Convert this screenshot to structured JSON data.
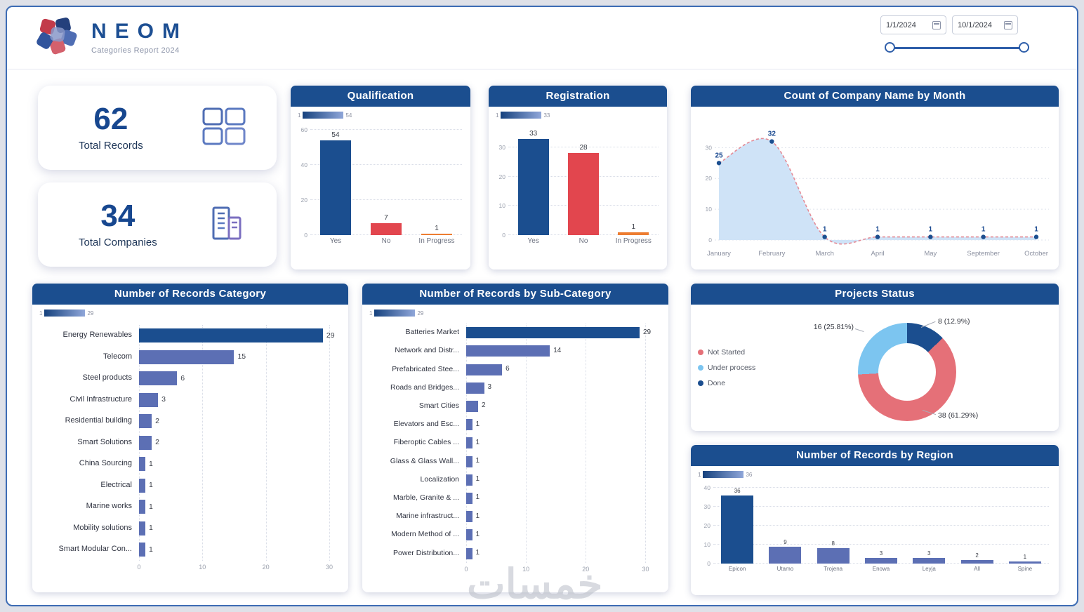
{
  "page": {
    "watermark": "خمسات"
  },
  "header": {
    "title": "NEOM",
    "subtitle": "Categories Report 2024",
    "date_from": "1/1/2024",
    "date_to": "10/1/2024"
  },
  "kpis": [
    {
      "value": "62",
      "label": "Total Records"
    },
    {
      "value": "34",
      "label": "Total Companies"
    }
  ],
  "colors": {
    "navy": "#1b4e8f",
    "slate": "#5c6fb4",
    "red": "#e2464e",
    "rose": "#e57078",
    "orange": "#ed7d31",
    "light_blue": "#7cc5f0"
  },
  "chart_data": [
    {
      "id": "qualification",
      "type": "bar",
      "title": "Qualification",
      "categories": [
        "Yes",
        "No",
        "In Progress"
      ],
      "values": [
        54,
        7,
        1
      ],
      "bar_colors": [
        "navy",
        "red",
        "orange"
      ],
      "yticks": [
        0,
        20,
        40,
        60
      ],
      "ylim": [
        0,
        60
      ],
      "legend_min": "1",
      "legend_max": "54",
      "xlabel": "",
      "ylabel": ""
    },
    {
      "id": "registration",
      "type": "bar",
      "title": "Registration",
      "categories": [
        "Yes",
        "No",
        "In Progress"
      ],
      "values": [
        33,
        28,
        1
      ],
      "bar_colors": [
        "navy",
        "red",
        "orange"
      ],
      "yticks": [
        0,
        10,
        20,
        30
      ],
      "ylim": [
        0,
        36
      ],
      "legend_min": "1",
      "legend_max": "33",
      "xlabel": "",
      "ylabel": ""
    },
    {
      "id": "company-by-month",
      "type": "area",
      "title": "Count of Company Name by Month",
      "categories": [
        "January",
        "February",
        "March",
        "April",
        "May",
        "September",
        "October"
      ],
      "values": [
        25,
        32,
        1,
        1,
        1,
        1,
        1
      ],
      "yticks": [
        0,
        10,
        20,
        30
      ],
      "ylim": [
        0,
        36
      ],
      "xlabel": "",
      "ylabel": ""
    },
    {
      "id": "records-category",
      "type": "bar",
      "title": "Number of Records Category",
      "categories": [
        "Energy Renewables",
        "Telecom",
        "Steel products",
        "Civil Infrastructure",
        "Residential building",
        "Smart Solutions",
        "China Sourcing",
        "Electrical",
        "Marine works",
        "Mobility solutions",
        "Smart Modular Con..."
      ],
      "values": [
        29,
        15,
        6,
        3,
        2,
        2,
        1,
        1,
        1,
        1,
        1
      ],
      "bar_colors": [
        "navy",
        "slate",
        "slate",
        "slate",
        "slate",
        "slate",
        "slate",
        "slate",
        "slate",
        "slate",
        "slate"
      ],
      "xticks": [
        0,
        10,
        20,
        30
      ],
      "xlim": [
        0,
        31
      ],
      "legend_min": "1",
      "legend_max": "29",
      "orientation": "horizontal"
    },
    {
      "id": "records-subcategory",
      "type": "bar",
      "title": "Number of Records by Sub-Category",
      "categories": [
        "Batteries Market",
        "Network and Distr...",
        "Prefabricated Stee...",
        "Roads and Bridges...",
        "Smart Cities",
        "Elevators and Esc...",
        "Fiberoptic Cables ...",
        "Glass & Glass Wall...",
        "Localization",
        "Marble, Granite & ...",
        "Marine infrastruct...",
        "Modern Method of ...",
        "Power Distribution..."
      ],
      "values": [
        29,
        14,
        6,
        3,
        2,
        1,
        1,
        1,
        1,
        1,
        1,
        1,
        1
      ],
      "bar_colors": [
        "navy",
        "slate",
        "slate",
        "slate",
        "slate",
        "slate",
        "slate",
        "slate",
        "slate",
        "slate",
        "slate",
        "slate",
        "slate"
      ],
      "xticks": [
        0,
        10,
        20,
        30
      ],
      "xlim": [
        0,
        31
      ],
      "legend_min": "1",
      "legend_max": "29",
      "orientation": "horizontal"
    },
    {
      "id": "projects-status",
      "type": "pie",
      "title": "Projects Status",
      "legend": [
        {
          "label": "Not Started",
          "color": "rose"
        },
        {
          "label": "Under process",
          "color": "light_blue"
        },
        {
          "label": "Done",
          "color": "navy"
        }
      ],
      "slices": [
        {
          "label": "Done",
          "value": 8,
          "pct": 12.9,
          "display": "8 (12.9%)",
          "color": "navy"
        },
        {
          "label": "Not Started",
          "value": 38,
          "pct": 61.29,
          "display": "38 (61.29%)",
          "color": "rose"
        },
        {
          "label": "Under process",
          "value": 16,
          "pct": 25.81,
          "display": "16 (25.81%)",
          "color": "light_blue"
        }
      ]
    },
    {
      "id": "records-region",
      "type": "bar",
      "title": "Number of Records by Region",
      "categories": [
        "Epicon",
        "Utamo",
        "Trojena",
        "Enowa",
        "Leyja",
        "All",
        "Spine"
      ],
      "values": [
        36,
        9,
        8,
        3,
        3,
        2,
        1
      ],
      "bar_colors": [
        "navy",
        "slate",
        "slate",
        "slate",
        "slate",
        "slate",
        "slate"
      ],
      "yticks": [
        0,
        10,
        20,
        30,
        40
      ],
      "ylim": [
        0,
        40
      ],
      "legend_min": "1",
      "legend_max": "36",
      "xlabel": "",
      "ylabel": ""
    }
  ]
}
